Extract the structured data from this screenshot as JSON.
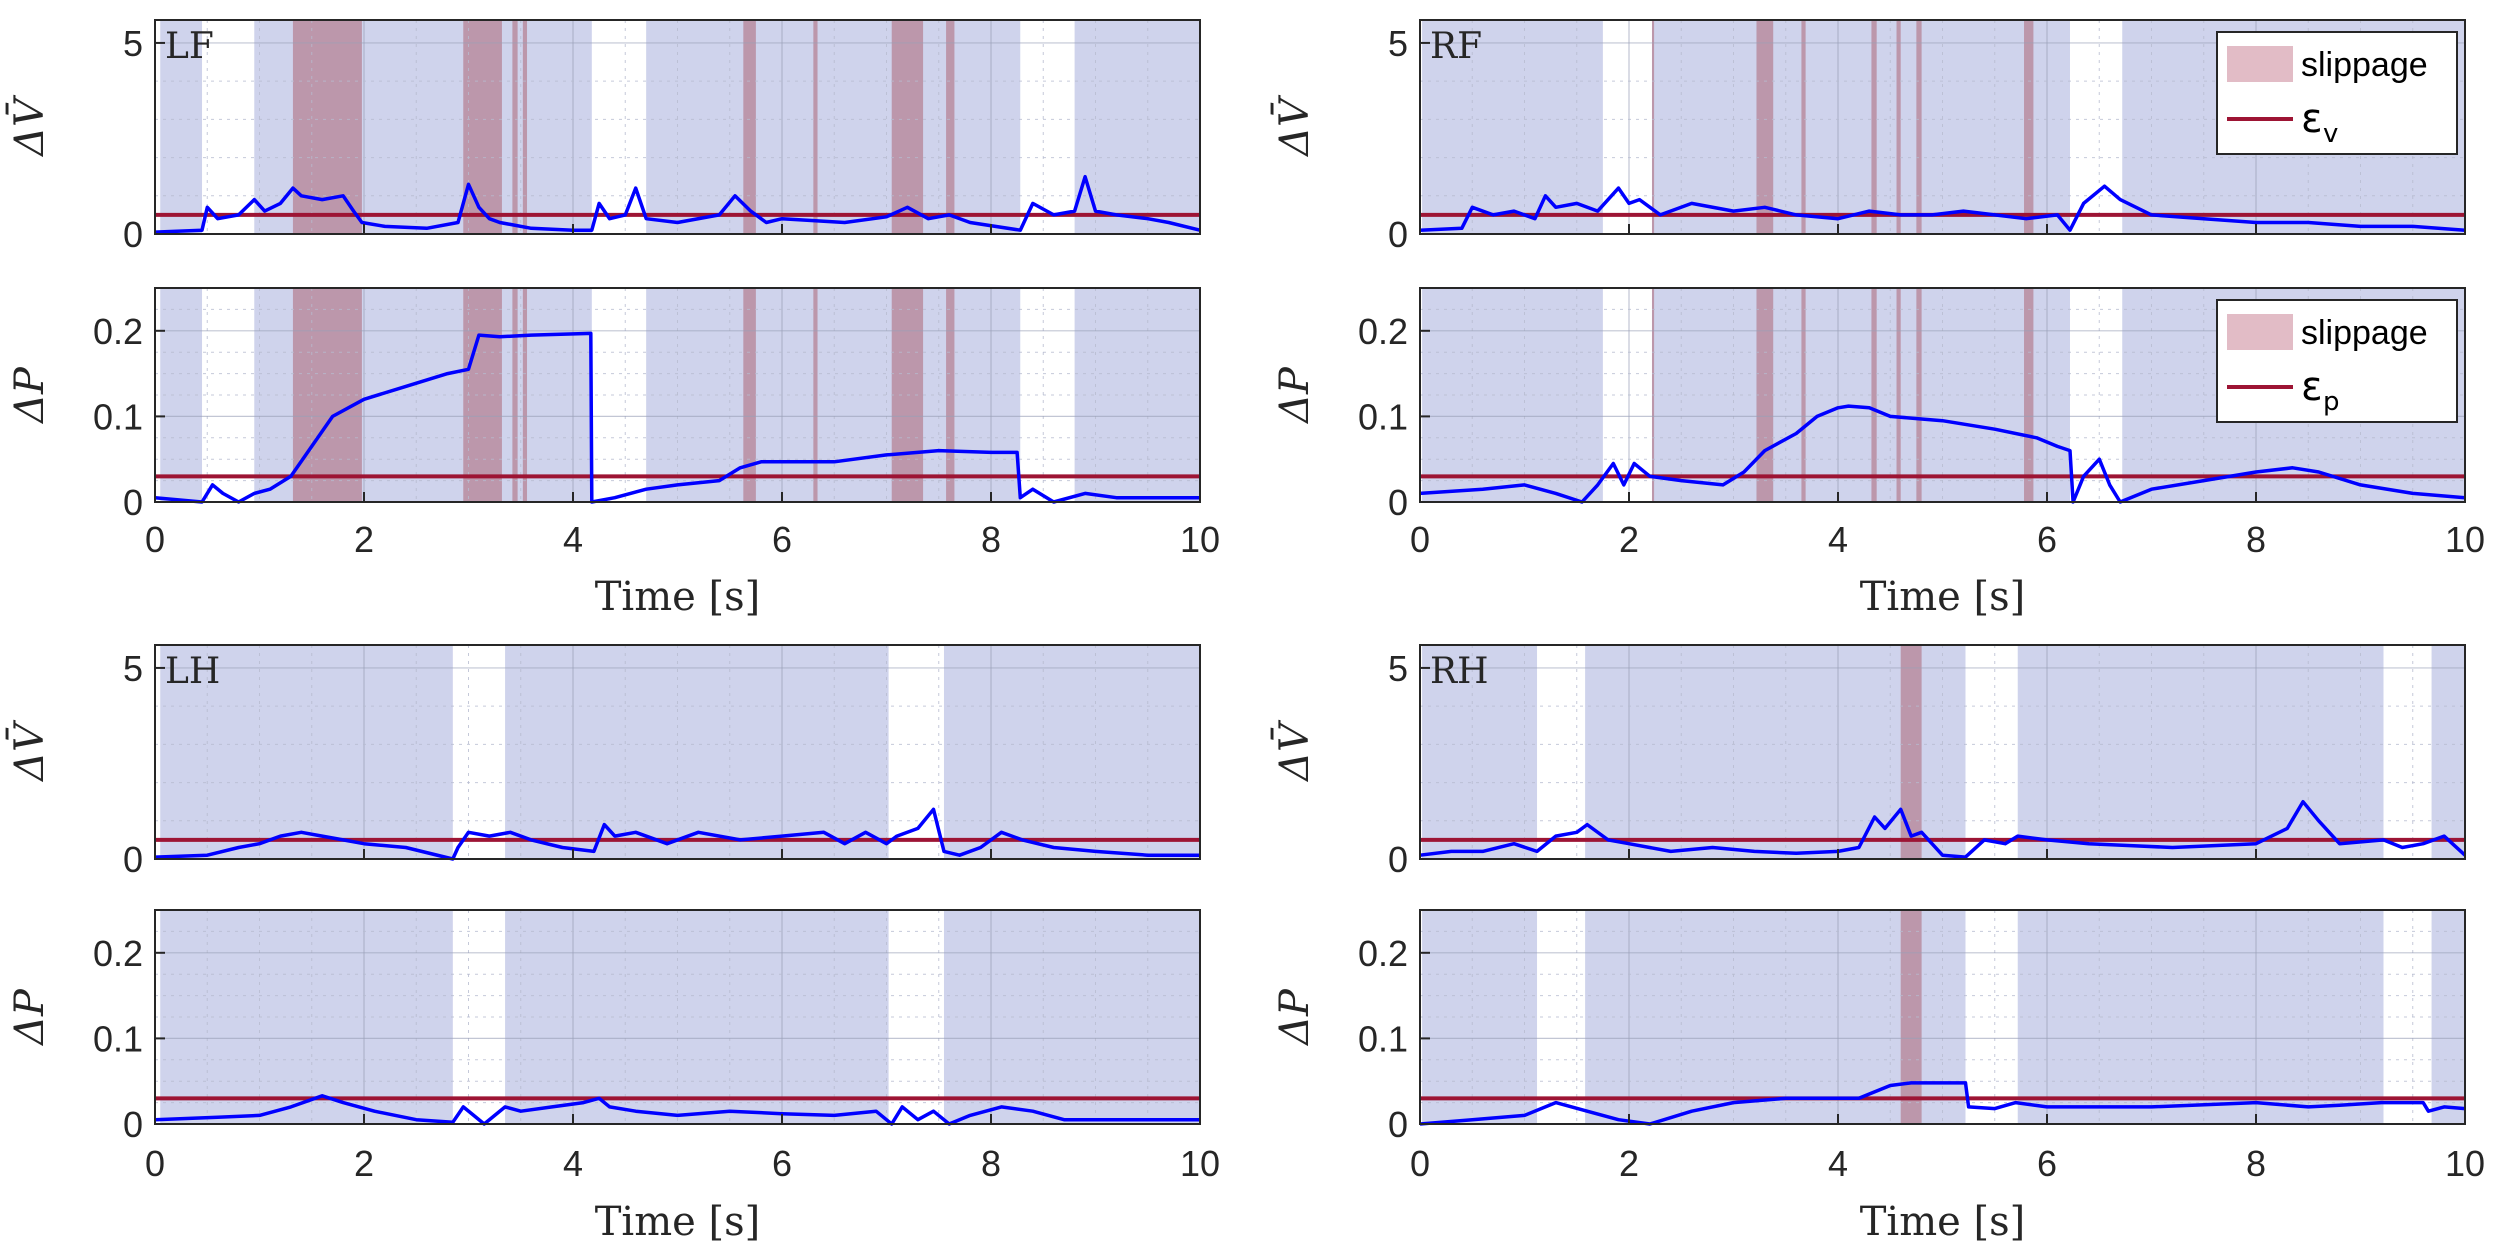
{
  "figure": {
    "panels_order": [
      "LF",
      "RF",
      "LH",
      "RH"
    ],
    "x_axis_label": "Time [s]"
  },
  "chart_data": [
    {
      "type": "line",
      "leg": "LF",
      "xlim": [
        0,
        10
      ],
      "xticks": [
        "0",
        "2",
        "4",
        "6",
        "8",
        "10"
      ],
      "xlabel": "Time [s]",
      "stance_phases": [
        [
          0.05,
          0.45
        ],
        [
          0.95,
          4.18
        ],
        [
          4.7,
          8.28
        ],
        [
          8.8,
          10.0
        ]
      ],
      "slippage_intervals": [
        [
          1.32,
          1.98
        ],
        [
          2.95,
          3.32
        ],
        [
          3.42,
          3.47
        ],
        [
          3.52,
          3.56
        ],
        [
          5.63,
          5.75
        ],
        [
          6.3,
          6.34
        ],
        [
          7.05,
          7.35
        ],
        [
          7.57,
          7.65
        ]
      ],
      "top": {
        "ylabel": "ΔV̄",
        "ylim": [
          0,
          5.6
        ],
        "yticks": [
          "0",
          "5"
        ],
        "threshold": 0.5,
        "threshold_label": "εv",
        "legend": false,
        "x": [
          0,
          0.45,
          0.5,
          0.6,
          0.8,
          0.95,
          1.05,
          1.2,
          1.32,
          1.4,
          1.6,
          1.8,
          1.9,
          1.98,
          2.2,
          2.6,
          2.9,
          3.0,
          3.1,
          3.2,
          3.3,
          3.4,
          3.6,
          4.0,
          4.18,
          4.25,
          4.35,
          4.5,
          4.6,
          4.7,
          5.0,
          5.4,
          5.55,
          5.7,
          5.85,
          6.0,
          6.3,
          6.6,
          7.0,
          7.2,
          7.4,
          7.6,
          7.8,
          8.28,
          8.4,
          8.6,
          8.8,
          8.9,
          9.0,
          9.2,
          9.5,
          9.7,
          10.0
        ],
        "values": [
          0.05,
          0.1,
          0.7,
          0.4,
          0.5,
          0.9,
          0.6,
          0.8,
          1.2,
          1.0,
          0.9,
          1.0,
          0.6,
          0.3,
          0.2,
          0.15,
          0.3,
          1.3,
          0.7,
          0.4,
          0.3,
          0.25,
          0.15,
          0.1,
          0.1,
          0.8,
          0.4,
          0.5,
          1.2,
          0.4,
          0.3,
          0.5,
          1.0,
          0.6,
          0.3,
          0.4,
          0.35,
          0.3,
          0.45,
          0.7,
          0.4,
          0.5,
          0.3,
          0.1,
          0.8,
          0.5,
          0.6,
          1.5,
          0.6,
          0.5,
          0.4,
          0.3,
          0.1
        ]
      },
      "bottom": {
        "ylabel": "ΔP",
        "ylim": [
          0,
          0.25
        ],
        "yticks": [
          "0",
          "0.1",
          "0.2"
        ],
        "threshold": 0.03,
        "threshold_label": "εp",
        "legend": false,
        "x": [
          0,
          0.45,
          0.55,
          0.65,
          0.8,
          0.95,
          1.1,
          1.3,
          1.7,
          2.0,
          2.4,
          2.8,
          3.0,
          3.1,
          3.3,
          3.6,
          4.17,
          4.18,
          4.4,
          4.7,
          5.0,
          5.4,
          5.6,
          5.8,
          6.5,
          7.0,
          7.5,
          8.0,
          8.25,
          8.28,
          8.4,
          8.6,
          8.9,
          9.2,
          9.6,
          10.0
        ],
        "values": [
          0.005,
          0.0,
          0.02,
          0.01,
          0.0,
          0.01,
          0.015,
          0.03,
          0.1,
          0.12,
          0.135,
          0.15,
          0.155,
          0.195,
          0.193,
          0.195,
          0.197,
          0.0,
          0.005,
          0.015,
          0.02,
          0.025,
          0.04,
          0.047,
          0.047,
          0.055,
          0.06,
          0.058,
          0.058,
          0.005,
          0.015,
          0.0,
          0.01,
          0.005,
          0.005,
          0.005
        ]
      }
    },
    {
      "type": "line",
      "leg": "RF",
      "xlim": [
        0,
        10
      ],
      "xticks": [
        "0",
        "2",
        "4",
        "6",
        "8",
        "10"
      ],
      "xlabel": "Time [s]",
      "stance_phases": [
        [
          0.02,
          1.75
        ],
        [
          2.22,
          6.22
        ],
        [
          6.72,
          10.0
        ]
      ],
      "slippage_intervals": [
        [
          2.22,
          2.24
        ],
        [
          3.22,
          3.38
        ],
        [
          3.65,
          3.69
        ],
        [
          4.32,
          4.37
        ],
        [
          4.56,
          4.6
        ],
        [
          4.75,
          4.8
        ],
        [
          5.78,
          5.87
        ]
      ],
      "top": {
        "ylabel": "ΔV̄",
        "ylim": [
          0,
          5.6
        ],
        "yticks": [
          "0",
          "5"
        ],
        "threshold": 0.5,
        "threshold_label": "εv",
        "legend": true,
        "x": [
          0,
          0.4,
          0.5,
          0.7,
          0.9,
          1.1,
          1.2,
          1.3,
          1.5,
          1.7,
          1.8,
          1.9,
          2.0,
          2.1,
          2.3,
          2.6,
          3.0,
          3.3,
          3.6,
          4.0,
          4.3,
          4.6,
          4.9,
          5.2,
          5.5,
          5.8,
          6.1,
          6.22,
          6.35,
          6.55,
          6.7,
          7.0,
          7.5,
          8.0,
          8.5,
          9.0,
          9.5,
          10.0
        ],
        "values": [
          0.1,
          0.15,
          0.7,
          0.5,
          0.6,
          0.4,
          1.0,
          0.7,
          0.8,
          0.6,
          0.9,
          1.2,
          0.8,
          0.9,
          0.5,
          0.8,
          0.6,
          0.7,
          0.5,
          0.4,
          0.6,
          0.5,
          0.5,
          0.6,
          0.5,
          0.4,
          0.5,
          0.1,
          0.8,
          1.25,
          0.9,
          0.5,
          0.4,
          0.3,
          0.3,
          0.2,
          0.2,
          0.1
        ]
      },
      "bottom": {
        "ylabel": "ΔP",
        "ylim": [
          0,
          0.25
        ],
        "yticks": [
          "0",
          "0.1",
          "0.2"
        ],
        "threshold": 0.03,
        "threshold_label": "εp",
        "legend": true,
        "x": [
          0,
          0.6,
          1.0,
          1.3,
          1.55,
          1.7,
          1.85,
          1.95,
          2.05,
          2.2,
          2.5,
          2.9,
          3.1,
          3.3,
          3.6,
          3.8,
          4.0,
          4.1,
          4.3,
          4.5,
          5.0,
          5.5,
          5.9,
          6.1,
          6.22,
          6.25,
          6.35,
          6.5,
          6.6,
          6.7,
          7.0,
          7.5,
          8.0,
          8.35,
          8.6,
          9.0,
          9.5,
          10.0
        ],
        "values": [
          0.01,
          0.015,
          0.02,
          0.01,
          0.0,
          0.02,
          0.045,
          0.02,
          0.045,
          0.03,
          0.025,
          0.02,
          0.035,
          0.06,
          0.08,
          0.1,
          0.11,
          0.112,
          0.11,
          0.1,
          0.095,
          0.085,
          0.075,
          0.065,
          0.06,
          0.0,
          0.03,
          0.05,
          0.02,
          0.0,
          0.015,
          0.025,
          0.035,
          0.04,
          0.035,
          0.02,
          0.01,
          0.005
        ]
      }
    },
    {
      "type": "line",
      "leg": "LH",
      "xlim": [
        0,
        10
      ],
      "xticks": [
        "0",
        "2",
        "4",
        "6",
        "8",
        "10"
      ],
      "xlabel": "Time [s]",
      "stance_phases": [
        [
          0.05,
          2.85
        ],
        [
          3.35,
          7.02
        ],
        [
          7.55,
          10.0
        ]
      ],
      "slippage_intervals": [],
      "top": {
        "ylabel": "ΔV̄",
        "ylim": [
          0,
          5.6
        ],
        "yticks": [
          "0",
          "5"
        ],
        "threshold": 0.5,
        "threshold_label": "εv",
        "legend": false,
        "x": [
          0,
          0.5,
          0.8,
          1.0,
          1.2,
          1.4,
          1.6,
          1.8,
          2.0,
          2.4,
          2.85,
          2.9,
          3.0,
          3.2,
          3.4,
          3.6,
          3.9,
          4.2,
          4.3,
          4.4,
          4.6,
          4.9,
          5.2,
          5.6,
          6.0,
          6.4,
          6.6,
          6.8,
          7.0,
          7.1,
          7.3,
          7.45,
          7.55,
          7.7,
          7.9,
          8.1,
          8.3,
          8.6,
          9.0,
          9.5,
          10.0
        ],
        "values": [
          0.05,
          0.1,
          0.3,
          0.4,
          0.6,
          0.7,
          0.6,
          0.5,
          0.4,
          0.3,
          0.0,
          0.3,
          0.7,
          0.6,
          0.7,
          0.5,
          0.3,
          0.2,
          0.9,
          0.6,
          0.7,
          0.4,
          0.7,
          0.5,
          0.6,
          0.7,
          0.4,
          0.7,
          0.4,
          0.6,
          0.8,
          1.3,
          0.2,
          0.1,
          0.3,
          0.7,
          0.5,
          0.3,
          0.2,
          0.1,
          0.1
        ]
      },
      "bottom": {
        "ylabel": "ΔP",
        "ylim": [
          0,
          0.25
        ],
        "yticks": [
          "0",
          "0.1",
          "0.2"
        ],
        "threshold": 0.03,
        "threshold_label": "εp",
        "legend": false,
        "x": [
          0,
          0.6,
          1.0,
          1.3,
          1.6,
          1.8,
          2.1,
          2.5,
          2.85,
          2.95,
          3.05,
          3.15,
          3.35,
          3.5,
          3.8,
          4.1,
          4.25,
          4.35,
          4.6,
          5.0,
          5.5,
          6.0,
          6.5,
          6.9,
          7.05,
          7.15,
          7.3,
          7.45,
          7.6,
          7.8,
          8.1,
          8.4,
          8.7,
          9.0,
          9.5,
          10.0
        ],
        "values": [
          0.005,
          0.008,
          0.01,
          0.02,
          0.033,
          0.025,
          0.015,
          0.005,
          0.002,
          0.02,
          0.01,
          0.0,
          0.02,
          0.015,
          0.02,
          0.025,
          0.03,
          0.02,
          0.015,
          0.01,
          0.015,
          0.012,
          0.01,
          0.015,
          0.0,
          0.02,
          0.005,
          0.015,
          0.0,
          0.01,
          0.02,
          0.015,
          0.005,
          0.005,
          0.005,
          0.005
        ]
      }
    },
    {
      "type": "line",
      "leg": "RH",
      "xlim": [
        0,
        10
      ],
      "xticks": [
        "0",
        "2",
        "4",
        "6",
        "8",
        "10"
      ],
      "xlabel": "Time [s]",
      "stance_phases": [
        [
          0.02,
          1.12
        ],
        [
          1.58,
          5.22
        ],
        [
          5.72,
          9.22
        ],
        [
          9.68,
          10.0
        ]
      ],
      "slippage_intervals": [
        [
          4.6,
          4.8
        ]
      ],
      "top": {
        "ylabel": "ΔV̄",
        "ylim": [
          0,
          5.6
        ],
        "yticks": [
          "0",
          "5"
        ],
        "threshold": 0.5,
        "threshold_label": "εv",
        "legend": false,
        "x": [
          0,
          0.3,
          0.6,
          0.9,
          1.12,
          1.3,
          1.5,
          1.6,
          1.8,
          2.0,
          2.4,
          2.8,
          3.2,
          3.6,
          4.0,
          4.2,
          4.35,
          4.45,
          4.6,
          4.7,
          4.8,
          5.0,
          5.22,
          5.4,
          5.6,
          5.72,
          6.0,
          6.4,
          6.8,
          7.2,
          7.6,
          8.0,
          8.3,
          8.45,
          8.6,
          8.8,
          9.22,
          9.4,
          9.6,
          9.8,
          10.0
        ],
        "values": [
          0.1,
          0.2,
          0.2,
          0.4,
          0.2,
          0.6,
          0.7,
          0.9,
          0.5,
          0.4,
          0.2,
          0.3,
          0.2,
          0.15,
          0.2,
          0.3,
          1.1,
          0.8,
          1.3,
          0.6,
          0.7,
          0.1,
          0.05,
          0.5,
          0.4,
          0.6,
          0.5,
          0.4,
          0.35,
          0.3,
          0.35,
          0.4,
          0.8,
          1.5,
          1.0,
          0.4,
          0.5,
          0.3,
          0.4,
          0.6,
          0.1
        ]
      },
      "bottom": {
        "ylabel": "ΔP",
        "ylim": [
          0,
          0.25
        ],
        "yticks": [
          "0",
          "0.1",
          "0.2"
        ],
        "threshold": 0.03,
        "threshold_label": "εp",
        "legend": false,
        "x": [
          0,
          0.5,
          1.0,
          1.3,
          1.6,
          1.9,
          2.2,
          2.6,
          3.0,
          3.5,
          4.0,
          4.2,
          4.3,
          4.5,
          4.7,
          5.0,
          5.22,
          5.25,
          5.5,
          5.7,
          6.0,
          7.0,
          8.0,
          8.5,
          8.8,
          9.2,
          9.6,
          9.65,
          9.8,
          10.0
        ],
        "values": [
          0.0,
          0.005,
          0.01,
          0.025,
          0.015,
          0.005,
          0.0,
          0.015,
          0.025,
          0.03,
          0.03,
          0.03,
          0.035,
          0.045,
          0.048,
          0.048,
          0.048,
          0.02,
          0.018,
          0.025,
          0.02,
          0.02,
          0.025,
          0.02,
          0.022,
          0.025,
          0.025,
          0.015,
          0.02,
          0.018
        ]
      }
    }
  ],
  "legend": {
    "slippage_label": "slippage",
    "epsilon_v_symbol": "ε",
    "epsilon_v_sub": "v",
    "epsilon_p_symbol": "ε",
    "epsilon_p_sub": "p"
  },
  "colors": {
    "stance_fill": "#cfd3ec",
    "slippage_fill": "#b98ca0",
    "signal_line": "#0000ff",
    "threshold_line": "#9d1434",
    "legend_swatch": "#e2bcc6"
  }
}
